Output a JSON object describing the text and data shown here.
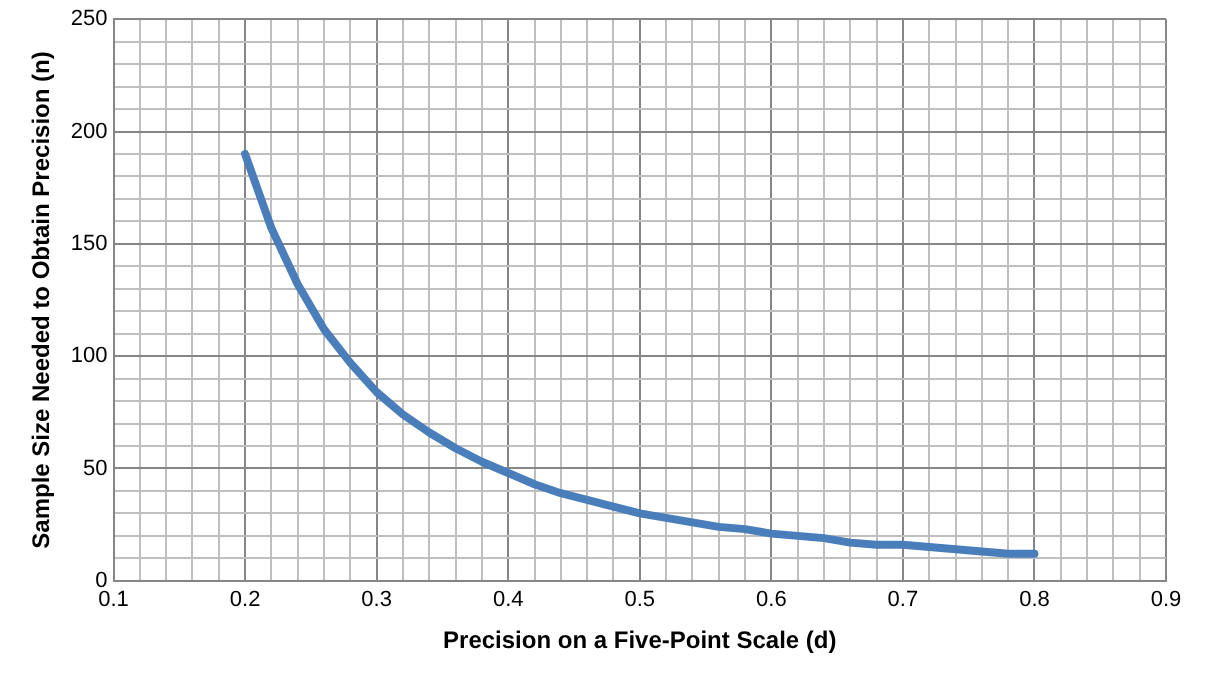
{
  "chart_data": {
    "type": "line",
    "xlabel": "Precision on a Five-Point Scale (d)",
    "ylabel": "Sample Size Needed to Obtain Precision (n)",
    "x": [
      0.2,
      0.22,
      0.24,
      0.26,
      0.28,
      0.3,
      0.32,
      0.34,
      0.36,
      0.38,
      0.4,
      0.42,
      0.44,
      0.46,
      0.48,
      0.5,
      0.52,
      0.54,
      0.56,
      0.58,
      0.6,
      0.62,
      0.64,
      0.66,
      0.68,
      0.7,
      0.72,
      0.74,
      0.76,
      0.78,
      0.8
    ],
    "series": [
      {
        "color": "#4a7ebb",
        "values": [
          190,
          157,
          132,
          112,
          97,
          84,
          74,
          66,
          59,
          53,
          48,
          43,
          39,
          36,
          33,
          30,
          28,
          26,
          24,
          23,
          21,
          20,
          19,
          17,
          16,
          16,
          15,
          14,
          13,
          12,
          12
        ]
      }
    ],
    "xlim": [
      0.1,
      0.9
    ],
    "xticks": [
      0.1,
      {
        "value": 0.12,
        "label": null
      },
      {
        "value": 0.14,
        "label": null
      },
      {
        "value": 0.16,
        "label": null
      },
      {
        "value": 0.18,
        "label": null
      },
      0.2,
      {
        "value": 0.22,
        "label": null
      },
      {
        "value": 0.24,
        "label": null
      },
      {
        "value": 0.26,
        "label": null
      },
      {
        "value": 0.28,
        "label": null
      },
      0.3,
      {
        "value": 0.32,
        "label": null
      },
      {
        "value": 0.34,
        "label": null
      },
      {
        "value": 0.36,
        "label": null
      },
      {
        "value": 0.38,
        "label": null
      },
      0.4,
      {
        "value": 0.42,
        "label": null
      },
      {
        "value": 0.44,
        "label": null
      },
      {
        "value": 0.46,
        "label": null
      },
      {
        "value": 0.48,
        "label": null
      },
      0.5,
      {
        "value": 0.52,
        "label": null
      },
      {
        "value": 0.54,
        "label": null
      },
      {
        "value": 0.56,
        "label": null
      },
      {
        "value": 0.58,
        "label": null
      },
      0.6,
      {
        "value": 0.62,
        "label": null
      },
      {
        "value": 0.64,
        "label": null
      },
      {
        "value": 0.66,
        "label": null
      },
      {
        "value": 0.68,
        "label": null
      },
      0.7,
      {
        "value": 0.72,
        "label": null
      },
      {
        "value": 0.74,
        "label": null
      },
      {
        "value": 0.76,
        "label": null
      },
      {
        "value": 0.78,
        "label": null
      },
      0.8,
      {
        "value": 0.82,
        "label": null
      },
      {
        "value": 0.84,
        "label": null
      },
      {
        "value": 0.86,
        "label": null
      },
      {
        "value": 0.88,
        "label": null
      },
      0.9
    ],
    "ylim": [
      0,
      250
    ],
    "yticks": [
      0,
      {
        "value": 10,
        "label": null
      },
      {
        "value": 20,
        "label": null
      },
      {
        "value": 30,
        "label": null
      },
      {
        "value": 40,
        "label": null
      },
      50,
      {
        "value": 60,
        "label": null
      },
      {
        "value": 70,
        "label": null
      },
      {
        "value": 80,
        "label": null
      },
      {
        "value": 90,
        "label": null
      },
      100,
      {
        "value": 110,
        "label": null
      },
      {
        "value": 120,
        "label": null
      },
      {
        "value": 130,
        "label": null
      },
      {
        "value": 140,
        "label": null
      },
      150,
      {
        "value": 160,
        "label": null
      },
      {
        "value": 170,
        "label": null
      },
      {
        "value": 180,
        "label": null
      },
      {
        "value": 190,
        "label": null
      },
      200,
      {
        "value": 210,
        "label": null
      },
      {
        "value": 220,
        "label": null
      },
      {
        "value": 230,
        "label": null
      },
      {
        "value": 240,
        "label": null
      },
      250
    ],
    "grid": true,
    "legend": false,
    "marker": "none",
    "line_style": "solid"
  }
}
